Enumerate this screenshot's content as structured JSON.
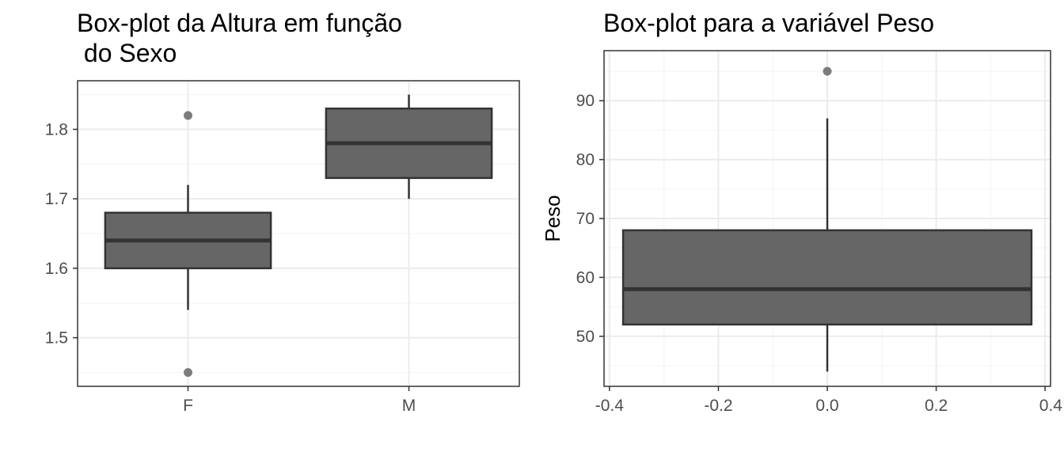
{
  "chart_data": [
    {
      "type": "box",
      "title": "Box-plot da Altura em função\n do Sexo",
      "xlabel": "",
      "ylabel": "",
      "ylim": [
        1.43,
        1.87
      ],
      "y_ticks": [
        1.5,
        1.6,
        1.7,
        1.8
      ],
      "y_tick_labels": [
        "1.5",
        "1.6",
        "1.7",
        "1.8"
      ],
      "categories": [
        "F",
        "M"
      ],
      "boxes": [
        {
          "category": "F",
          "whisker_low": 1.54,
          "q1": 1.6,
          "median": 1.64,
          "q3": 1.68,
          "whisker_high": 1.72,
          "outliers": [
            1.82,
            1.45
          ]
        },
        {
          "category": "M",
          "whisker_low": 1.7,
          "q1": 1.73,
          "median": 1.78,
          "q3": 1.83,
          "whisker_high": 1.85,
          "outliers": []
        }
      ],
      "grid": true
    },
    {
      "type": "box",
      "title": "Box-plot para a variável Peso",
      "xlabel": "",
      "ylabel": "Peso",
      "xlim": [
        -0.41,
        0.41
      ],
      "ylim": [
        41.5,
        98.5
      ],
      "x_ticks": [
        -0.4,
        -0.2,
        0.0,
        0.2,
        0.4
      ],
      "x_tick_labels": [
        "-0.4",
        "-0.2",
        "0.0",
        "0.2",
        "0.4"
      ],
      "y_ticks": [
        50,
        60,
        70,
        80,
        90
      ],
      "y_tick_labels": [
        "50",
        "60",
        "70",
        "80",
        "90"
      ],
      "boxes": [
        {
          "x_min": -0.375,
          "x_max": 0.375,
          "x_center": 0.0,
          "whisker_low": 44,
          "q1": 52,
          "median": 58,
          "q3": 68,
          "whisker_high": 87,
          "outliers": [
            95
          ]
        }
      ],
      "grid": true
    }
  ],
  "colors": {
    "box_fill": "#666666",
    "box_stroke": "#333333",
    "grid_major": "#ebebeb",
    "grid_minor": "#f5f5f5",
    "panel_border": "#333333",
    "outlier": "#666666"
  }
}
